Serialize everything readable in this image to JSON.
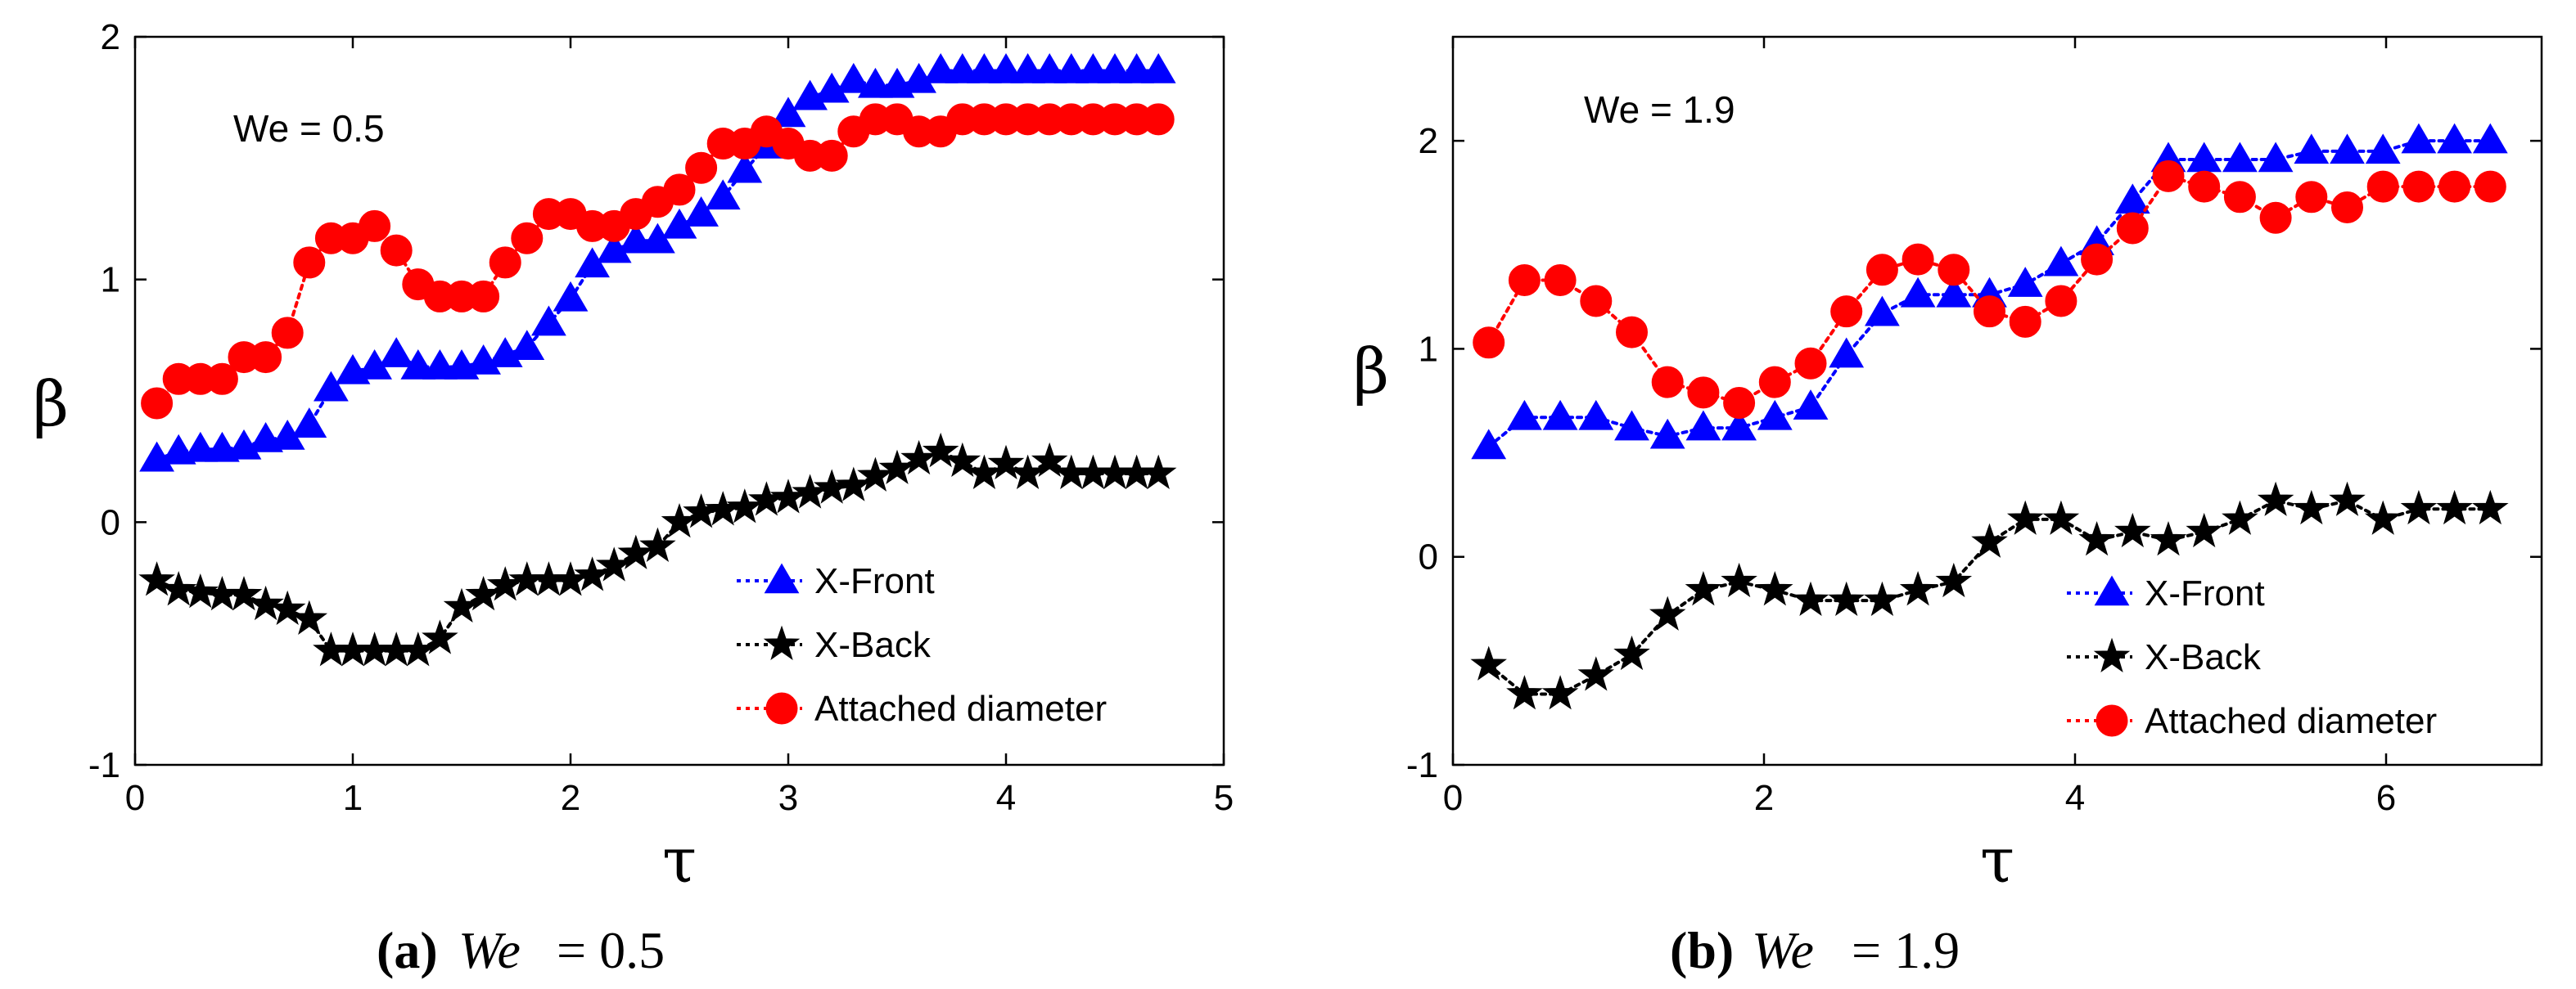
{
  "chart_data": [
    {
      "type": "line",
      "panel_tag": "(a)",
      "caption_label": "We",
      "caption_value": "= 0.5",
      "annotation": "We = 0.5",
      "xlabel": "τ",
      "ylabel": "β",
      "xlim": [
        0,
        5
      ],
      "ylim": [
        -1,
        2
      ],
      "xticks": [
        0,
        1,
        2,
        3,
        4,
        5
      ],
      "yticks": [
        -1,
        0,
        1,
        2
      ],
      "grid": false,
      "legend_position": "bottom-right",
      "series": [
        {
          "name": "X-Front",
          "color": "#0000ff",
          "marker": "triangle",
          "x": [
            0.1,
            0.2,
            0.3,
            0.4,
            0.5,
            0.6,
            0.7,
            0.8,
            0.9,
            1.0,
            1.1,
            1.2,
            1.3,
            1.4,
            1.5,
            1.6,
            1.7,
            1.8,
            1.9,
            2.0,
            2.1,
            2.2,
            2.3,
            2.4,
            2.5,
            2.6,
            2.7,
            2.8,
            2.9,
            3.0,
            3.1,
            3.2,
            3.3,
            3.4,
            3.5,
            3.6,
            3.7,
            3.8,
            3.9,
            4.0,
            4.1,
            4.2,
            4.3,
            4.4,
            4.5,
            4.6,
            4.7
          ],
          "y": [
            0.26,
            0.29,
            0.3,
            0.3,
            0.31,
            0.34,
            0.35,
            0.4,
            0.55,
            0.62,
            0.64,
            0.69,
            0.64,
            0.64,
            0.64,
            0.66,
            0.69,
            0.72,
            0.82,
            0.92,
            1.06,
            1.12,
            1.16,
            1.16,
            1.22,
            1.27,
            1.34,
            1.45,
            1.55,
            1.68,
            1.75,
            1.78,
            1.82,
            1.8,
            1.8,
            1.82,
            1.86,
            1.86,
            1.86,
            1.86,
            1.86,
            1.86,
            1.86,
            1.86,
            1.86,
            1.86,
            1.86
          ]
        },
        {
          "name": "X-Back",
          "color": "#000000",
          "marker": "star",
          "x": [
            0.1,
            0.2,
            0.3,
            0.4,
            0.5,
            0.6,
            0.7,
            0.8,
            0.9,
            1.0,
            1.1,
            1.2,
            1.3,
            1.4,
            1.5,
            1.6,
            1.7,
            1.8,
            1.9,
            2.0,
            2.1,
            2.2,
            2.3,
            2.4,
            2.5,
            2.6,
            2.7,
            2.8,
            2.9,
            3.0,
            3.1,
            3.2,
            3.3,
            3.4,
            3.5,
            3.6,
            3.7,
            3.8,
            3.9,
            4.0,
            4.1,
            4.2,
            4.3,
            4.4,
            4.5,
            4.6,
            4.7
          ],
          "y": [
            -0.24,
            -0.28,
            -0.29,
            -0.3,
            -0.3,
            -0.34,
            -0.36,
            -0.4,
            -0.53,
            -0.53,
            -0.53,
            -0.53,
            -0.53,
            -0.48,
            -0.35,
            -0.3,
            -0.26,
            -0.24,
            -0.24,
            -0.24,
            -0.22,
            -0.18,
            -0.13,
            -0.1,
            0.0,
            0.04,
            0.05,
            0.06,
            0.09,
            0.1,
            0.12,
            0.14,
            0.15,
            0.19,
            0.22,
            0.26,
            0.29,
            0.25,
            0.2,
            0.24,
            0.2,
            0.25,
            0.2,
            0.2,
            0.2,
            0.2,
            0.2
          ]
        },
        {
          "name": "Attached diameter",
          "color": "#ff0000",
          "marker": "circle",
          "x": [
            0.1,
            0.2,
            0.3,
            0.4,
            0.5,
            0.6,
            0.7,
            0.8,
            0.9,
            1.0,
            1.1,
            1.2,
            1.3,
            1.4,
            1.5,
            1.6,
            1.7,
            1.8,
            1.9,
            2.0,
            2.1,
            2.2,
            2.3,
            2.4,
            2.5,
            2.6,
            2.7,
            2.8,
            2.9,
            3.0,
            3.1,
            3.2,
            3.3,
            3.4,
            3.5,
            3.6,
            3.7,
            3.8,
            3.9,
            4.0,
            4.1,
            4.2,
            4.3,
            4.4,
            4.5,
            4.6,
            4.7
          ],
          "y": [
            0.49,
            0.59,
            0.59,
            0.59,
            0.68,
            0.68,
            0.78,
            1.07,
            1.17,
            1.17,
            1.22,
            1.12,
            0.98,
            0.93,
            0.93,
            0.93,
            1.07,
            1.17,
            1.27,
            1.27,
            1.22,
            1.22,
            1.27,
            1.32,
            1.37,
            1.46,
            1.56,
            1.56,
            1.61,
            1.56,
            1.51,
            1.51,
            1.61,
            1.66,
            1.66,
            1.61,
            1.61,
            1.66,
            1.66,
            1.66,
            1.66,
            1.66,
            1.66,
            1.66,
            1.66,
            1.66,
            1.66
          ]
        }
      ]
    },
    {
      "type": "line",
      "panel_tag": "(b)",
      "caption_label": "We",
      "caption_value": "= 1.9",
      "annotation": "We = 1.9",
      "xlabel": "τ",
      "ylabel": "β",
      "xlim": [
        0,
        7
      ],
      "ylim": [
        -1,
        2.5
      ],
      "xticks": [
        0,
        2,
        4,
        6
      ],
      "yticks": [
        -1,
        0,
        1,
        2
      ],
      "grid": false,
      "legend_position": "bottom-right",
      "series": [
        {
          "name": "X-Front",
          "color": "#0000ff",
          "marker": "triangle",
          "x": [
            0.23,
            0.46,
            0.69,
            0.92,
            1.15,
            1.38,
            1.61,
            1.84,
            2.07,
            2.3,
            2.53,
            2.76,
            2.99,
            3.22,
            3.45,
            3.68,
            3.91,
            4.14,
            4.37,
            4.6,
            4.83,
            5.06,
            5.29,
            5.52,
            5.75,
            5.98,
            6.21,
            6.44,
            6.67
          ],
          "y": [
            0.53,
            0.67,
            0.67,
            0.67,
            0.62,
            0.58,
            0.62,
            0.62,
            0.67,
            0.72,
            0.97,
            1.17,
            1.26,
            1.26,
            1.26,
            1.31,
            1.41,
            1.51,
            1.71,
            1.91,
            1.91,
            1.91,
            1.91,
            1.95,
            1.95,
            1.95,
            2.0,
            2.0,
            2.0
          ]
        },
        {
          "name": "X-Back",
          "color": "#000000",
          "marker": "star",
          "x": [
            0.23,
            0.46,
            0.69,
            0.92,
            1.15,
            1.38,
            1.61,
            1.84,
            2.07,
            2.3,
            2.53,
            2.76,
            2.99,
            3.22,
            3.45,
            3.68,
            3.91,
            4.14,
            4.37,
            4.6,
            4.83,
            5.06,
            5.29,
            5.52,
            5.75,
            5.98,
            6.21,
            6.44,
            6.67
          ],
          "y": [
            -0.52,
            -0.66,
            -0.66,
            -0.57,
            -0.47,
            -0.28,
            -0.16,
            -0.12,
            -0.16,
            -0.21,
            -0.21,
            -0.21,
            -0.16,
            -0.12,
            0.07,
            0.18,
            0.18,
            0.08,
            0.12,
            0.08,
            0.12,
            0.18,
            0.27,
            0.23,
            0.27,
            0.18,
            0.23,
            0.23,
            0.23
          ]
        },
        {
          "name": "Attached diameter",
          "color": "#ff0000",
          "marker": "circle",
          "x": [
            0.23,
            0.46,
            0.69,
            0.92,
            1.15,
            1.38,
            1.61,
            1.84,
            2.07,
            2.3,
            2.53,
            2.76,
            2.99,
            3.22,
            3.45,
            3.68,
            3.91,
            4.14,
            4.37,
            4.6,
            4.83,
            5.06,
            5.29,
            5.52,
            5.75,
            5.98,
            6.21,
            6.44,
            6.67
          ],
          "y": [
            1.03,
            1.33,
            1.33,
            1.23,
            1.08,
            0.84,
            0.79,
            0.74,
            0.84,
            0.93,
            1.18,
            1.38,
            1.43,
            1.38,
            1.18,
            1.13,
            1.23,
            1.43,
            1.58,
            1.83,
            1.78,
            1.73,
            1.63,
            1.73,
            1.68,
            1.78,
            1.78,
            1.78,
            1.78
          ]
        }
      ]
    }
  ]
}
